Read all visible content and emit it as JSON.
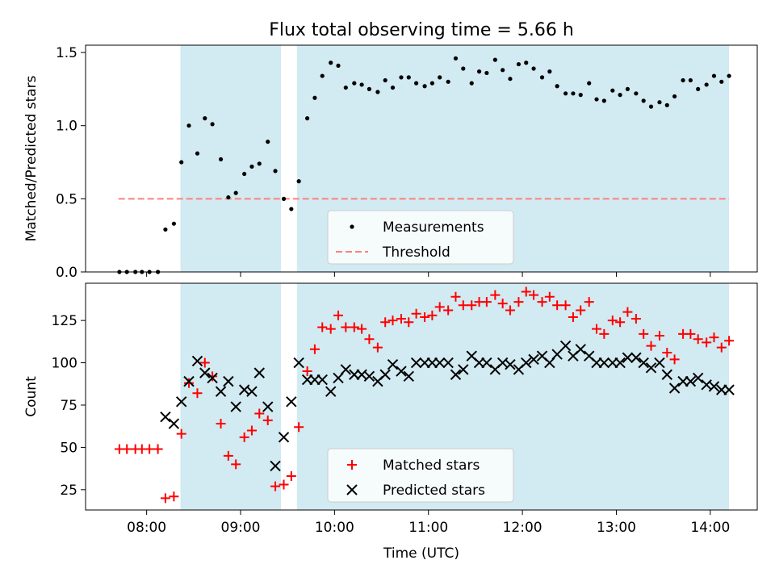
{
  "title": "Flux total observing time = 5.66 h",
  "colors": {
    "band": "#add8e6",
    "measurement": "#000000",
    "threshold": "#ff7f7f",
    "matched": "#ff0000",
    "predicted": "#000000"
  },
  "chart_data": [
    {
      "type": "scatter",
      "ylabel": "Matched/Predicted stars",
      "xlim": [
        7.35,
        14.5
      ],
      "ylim": [
        0,
        1.55
      ],
      "yticks": [
        0.0,
        0.5,
        1.0,
        1.5
      ],
      "yticklabels": [
        "0.0",
        "0.5",
        "1.0",
        "1.5"
      ],
      "shaded_intervals": [
        [
          8.36,
          9.43
        ],
        [
          9.6,
          14.2
        ]
      ],
      "legend": {
        "position": "lower-center",
        "entries": [
          "Measurements",
          "Threshold"
        ]
      },
      "threshold": {
        "name": "Threshold",
        "y": 0.5,
        "x": [
          7.7,
          14.2
        ]
      },
      "series": [
        {
          "name": "Measurements",
          "x": [
            7.71,
            7.79,
            7.88,
            7.95,
            8.03,
            8.12,
            8.2,
            8.29,
            8.37,
            8.45,
            8.54,
            8.62,
            8.7,
            8.79,
            8.87,
            8.95,
            9.04,
            9.12,
            9.2,
            9.29,
            9.37,
            9.46,
            9.54,
            9.62,
            9.71,
            9.79,
            9.87,
            9.96,
            10.04,
            10.12,
            10.21,
            10.29,
            10.37,
            10.46,
            10.54,
            10.62,
            10.71,
            10.79,
            10.87,
            10.96,
            11.04,
            11.12,
            11.21,
            11.29,
            11.37,
            11.46,
            11.54,
            11.62,
            11.71,
            11.79,
            11.87,
            11.96,
            12.04,
            12.12,
            12.21,
            12.29,
            12.37,
            12.46,
            12.54,
            12.62,
            12.71,
            12.79,
            12.87,
            12.96,
            13.04,
            13.12,
            13.21,
            13.29,
            13.37,
            13.46,
            13.54,
            13.62,
            13.71,
            13.79,
            13.87,
            13.96,
            14.04,
            14.12,
            14.2
          ],
          "y": [
            0.0,
            0.0,
            0.0,
            0.0,
            0.0,
            0.0,
            0.29,
            0.33,
            0.75,
            1.0,
            0.81,
            1.05,
            1.01,
            0.77,
            0.51,
            0.54,
            0.67,
            0.72,
            0.74,
            0.89,
            0.69,
            0.5,
            0.43,
            0.62,
            1.05,
            1.19,
            1.34,
            1.43,
            1.41,
            1.26,
            1.29,
            1.28,
            1.25,
            1.23,
            1.31,
            1.26,
            1.33,
            1.33,
            1.29,
            1.27,
            1.29,
            1.33,
            1.3,
            1.46,
            1.39,
            1.29,
            1.37,
            1.36,
            1.45,
            1.38,
            1.32,
            1.42,
            1.43,
            1.39,
            1.33,
            1.37,
            1.27,
            1.22,
            1.22,
            1.21,
            1.29,
            1.18,
            1.17,
            1.24,
            1.21,
            1.25,
            1.22,
            1.17,
            1.13,
            1.16,
            1.14,
            1.2,
            1.31,
            1.31,
            1.25,
            1.28,
            1.34,
            1.3,
            1.34
          ]
        }
      ]
    },
    {
      "type": "scatter",
      "title": "",
      "ylabel": "Count",
      "xlabel": "Time (UTC)",
      "xlim": [
        7.35,
        14.5
      ],
      "ylim": [
        13,
        147
      ],
      "xticks": [
        8,
        9,
        10,
        11,
        12,
        13,
        14
      ],
      "xticklabels": [
        "08:00",
        "09:00",
        "10:00",
        "11:00",
        "12:00",
        "13:00",
        "14:00"
      ],
      "yticks": [
        25,
        50,
        75,
        100,
        125
      ],
      "yticklabels": [
        "25",
        "50",
        "75",
        "100",
        "125"
      ],
      "shaded_intervals": [
        [
          8.36,
          9.43
        ],
        [
          9.6,
          14.2
        ]
      ],
      "legend": {
        "position": "lower-center",
        "entries": [
          "Matched stars",
          "Predicted stars"
        ]
      },
      "series": [
        {
          "name": "Matched stars",
          "x": [
            7.71,
            7.79,
            7.88,
            7.95,
            8.03,
            8.12,
            8.2,
            8.29,
            8.37,
            8.45,
            8.54,
            8.62,
            8.7,
            8.79,
            8.87,
            8.95,
            9.04,
            9.12,
            9.2,
            9.29,
            9.37,
            9.46,
            9.54,
            9.62,
            9.71,
            9.79,
            9.87,
            9.96,
            10.04,
            10.12,
            10.21,
            10.29,
            10.37,
            10.46,
            10.54,
            10.62,
            10.71,
            10.79,
            10.87,
            10.96,
            11.04,
            11.12,
            11.21,
            11.29,
            11.37,
            11.46,
            11.54,
            11.62,
            11.71,
            11.79,
            11.87,
            11.96,
            12.04,
            12.12,
            12.21,
            12.29,
            12.37,
            12.46,
            12.54,
            12.62,
            12.71,
            12.79,
            12.87,
            12.96,
            13.04,
            13.12,
            13.21,
            13.29,
            13.37,
            13.46,
            13.54,
            13.62,
            13.71,
            13.79,
            13.87,
            13.96,
            14.04,
            14.12,
            14.2
          ],
          "y": [
            49,
            49,
            49,
            49,
            49,
            49,
            20,
            21,
            58,
            88,
            82,
            100,
            92,
            64,
            45,
            40,
            56,
            60,
            70,
            66,
            27,
            28,
            33,
            62,
            95,
            108,
            121,
            120,
            128,
            121,
            121,
            120,
            114,
            109,
            124,
            125,
            126,
            124,
            129,
            127,
            128,
            133,
            131,
            139,
            134,
            134,
            136,
            136,
            140,
            135,
            131,
            136,
            142,
            140,
            136,
            139,
            134,
            134,
            127,
            131,
            136,
            120,
            117,
            125,
            124,
            130,
            126,
            117,
            110,
            116,
            106,
            102,
            117,
            117,
            114,
            112,
            115,
            109,
            113
          ]
        },
        {
          "name": "Predicted stars",
          "x": [
            8.2,
            8.29,
            8.37,
            8.45,
            8.54,
            8.62,
            8.7,
            8.79,
            8.87,
            8.95,
            9.04,
            9.12,
            9.2,
            9.29,
            9.37,
            9.46,
            9.54,
            9.62,
            9.71,
            9.79,
            9.87,
            9.96,
            10.04,
            10.12,
            10.21,
            10.29,
            10.37,
            10.46,
            10.54,
            10.62,
            10.71,
            10.79,
            10.87,
            10.96,
            11.04,
            11.12,
            11.21,
            11.29,
            11.37,
            11.46,
            11.54,
            11.62,
            11.71,
            11.79,
            11.87,
            11.96,
            12.04,
            12.12,
            12.21,
            12.29,
            12.37,
            12.46,
            12.54,
            12.62,
            12.71,
            12.79,
            12.87,
            12.96,
            13.04,
            13.12,
            13.21,
            13.29,
            13.37,
            13.46,
            13.54,
            13.62,
            13.71,
            13.79,
            13.87,
            13.96,
            14.04,
            14.12,
            14.2
          ],
          "y": [
            68,
            64,
            77,
            89,
            101,
            94,
            91,
            83,
            89,
            74,
            84,
            83,
            94,
            74,
            39,
            56,
            77,
            100,
            90,
            90,
            90,
            83,
            91,
            96,
            93,
            93,
            92,
            89,
            93,
            99,
            95,
            92,
            100,
            100,
            100,
            100,
            100,
            93,
            96,
            104,
            100,
            100,
            96,
            100,
            99,
            96,
            100,
            102,
            104,
            100,
            105,
            110,
            104,
            108,
            104,
            100,
            100,
            100,
            100,
            103,
            103,
            100,
            97,
            100,
            93,
            85,
            89,
            89,
            91,
            87,
            86,
            84,
            84
          ]
        }
      ]
    }
  ]
}
